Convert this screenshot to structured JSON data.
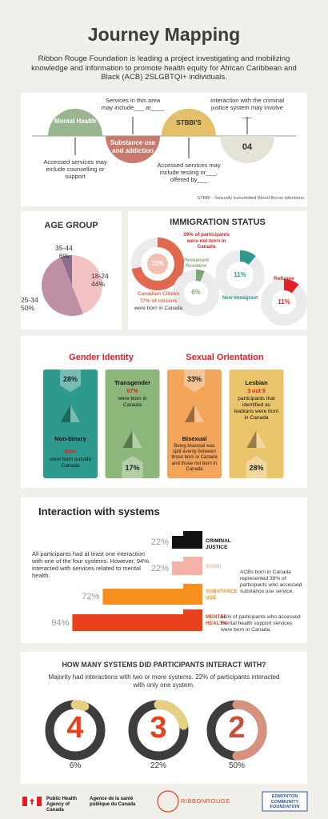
{
  "header": {
    "title": "Journey Mapping",
    "intro": "Ribbon Rouge Foundation is leading a project investigating and mobilizing knowledge and information to promote health equity for African Caribbean and Black (ACB) 2SLGBTQI+ individuals."
  },
  "journey": {
    "steps": [
      {
        "label": "Mental Health",
        "note": "Accessed services may include counselling or support"
      },
      {
        "label": "Substance use and addiction",
        "note": "Services in this area may include___ at____"
      },
      {
        "label": "STBBI'S",
        "note": "Accessed services may include testing or___, offered by___"
      },
      {
        "label": "04",
        "note": "Interaction with the criminal justice system may involve ___"
      }
    ],
    "footnote": "STBBI - Sexually transmitted Blood Borne infections"
  },
  "age_group": {
    "type": "pie",
    "title": "AGE GROUP",
    "categories": [
      "18-24",
      "25-34",
      "35-44"
    ],
    "values": [
      44,
      50,
      6
    ],
    "value_labels": [
      "44%",
      "50%",
      "6%"
    ],
    "colors": [
      "#f2c2c2",
      "#bf8fa6",
      "#8d6d8c"
    ]
  },
  "immigration": {
    "type": "donut",
    "title": "IMMIGRATION STATUS",
    "note": "39% of participants were not born in Canada",
    "categories": [
      "Canadian Citizen",
      "Permanent Resident",
      "New Immigrant",
      "Refugee"
    ],
    "values": [
      72,
      6,
      11,
      11
    ],
    "value_labels": [
      "72%",
      "6%",
      "11%",
      "11%"
    ],
    "colors": [
      "#e0694f",
      "#7ea873",
      "#2e9a8d",
      "#e31e24"
    ],
    "citizen_highlight": "77% of citizens",
    "citizen_note": "were born in Canada"
  },
  "identity": {
    "gender_title": "Gender Identity",
    "orientation_title": "Sexual Orientation",
    "cards": [
      {
        "label": "Non-binary",
        "value": 28,
        "value_label": "28%",
        "highlight": "60%",
        "note": "were born outside Canada",
        "color": "#2e9a8d"
      },
      {
        "label": "Transgender",
        "value": 17,
        "value_label": "17%",
        "highlight": "67%",
        "note": "were born in Canada",
        "color": "#8db67a"
      },
      {
        "label": "Bisexual",
        "value": 33,
        "value_label": "33%",
        "note": "Being bisexual was split evenly between those born in Canada and those not born in Canada",
        "color": "#f2a55b"
      },
      {
        "label": "Lesbian",
        "value": 28,
        "value_label": "28%",
        "highlight": "3 out 5",
        "note": "participants that identified as leabians were born in Canada",
        "color": "#e9c46a"
      }
    ]
  },
  "systems": {
    "type": "bar",
    "title": "Interaction with systems",
    "summary": "All participants had at least one interaction with one of the four systems. However, 94% interacted with services related to mental health.",
    "categories": [
      "CRIMINAL JUSTICE",
      "STBBI",
      "SUBSTANCE USE",
      "MENTAL HEALTH"
    ],
    "values": [
      22,
      22,
      72,
      94
    ],
    "value_labels": [
      "22%",
      "22%",
      "72%",
      "94%"
    ],
    "colors": [
      "#111111",
      "#f5b3a8",
      "#f5901e",
      "#e8411c"
    ],
    "notes": [
      "ACBs born in Canada represented 39% of participants who accessed substance use service.",
      "50% of participants who accessed mental health support services were born in Canada."
    ]
  },
  "count": {
    "type": "donut",
    "title": "HOW MANY SYSTEMS DID PARTICIPANTS INTERACT WITH?",
    "summary": "Majority had interactions with two or more systems. 22% of participants interacted with only one system.",
    "categories": [
      "4",
      "3",
      "2"
    ],
    "values": [
      6,
      22,
      50
    ],
    "value_labels": [
      "6%",
      "22%",
      "50%"
    ],
    "colors": [
      "#e6cf7e",
      "#e6cf7e",
      "#d6927f"
    ],
    "number_colors": [
      "#e8411c",
      "#e8411c",
      "#c9503c"
    ]
  },
  "footer": {
    "logos": [
      "Public Health Agency of Canada",
      "Agence de la santé publique du Canada",
      "RIBBONROUGE",
      "EDMONTON COMMUNITY FOUNDATION"
    ]
  }
}
